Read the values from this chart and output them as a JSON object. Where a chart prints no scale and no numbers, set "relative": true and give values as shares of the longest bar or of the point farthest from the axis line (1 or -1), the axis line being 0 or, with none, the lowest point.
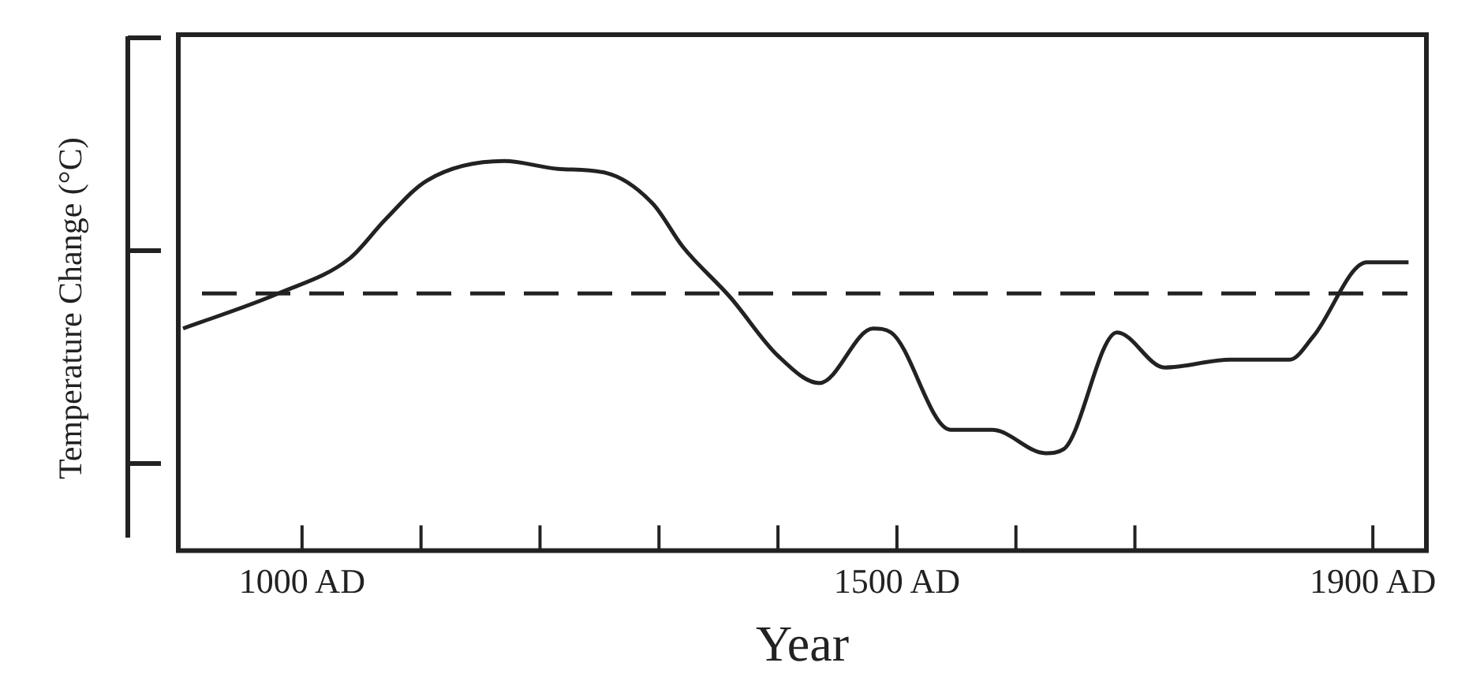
{
  "chart_data": {
    "type": "line",
    "relative": true,
    "xlabel": "Year",
    "ylabel": "Temperature Change (°C)",
    "xlim": [
      896,
      1945
    ],
    "xticks": [
      {
        "value": 1000,
        "label": "1000 AD"
      },
      {
        "value": 1100,
        "label": null
      },
      {
        "value": 1200,
        "label": null
      },
      {
        "value": 1300,
        "label": null
      },
      {
        "value": 1400,
        "label": null
      },
      {
        "value": 1500,
        "label": "1500 AD"
      },
      {
        "value": 1600,
        "label": null
      },
      {
        "value": 1700,
        "label": null
      },
      {
        "value": 1900,
        "label": "1900 AD"
      }
    ],
    "series": [
      {
        "color": "#222222",
        "x": [
          900,
          980,
          1040,
          1070,
          1105,
          1170,
          1215,
          1255,
          1295,
          1320,
          1360,
          1400,
          1435,
          1480,
          1495,
          1545,
          1580,
          1625,
          1640,
          1685,
          1725,
          1780,
          1830,
          1850,
          1895,
          1930
        ],
        "values": [
          0.57,
          0.66,
          0.75,
          0.85,
          0.95,
          1,
          0.98,
          0.97,
          0.89,
          0.78,
          0.65,
          0.5,
          0.43,
          0.57,
          0.56,
          0.31,
          0.31,
          0.25,
          0.26,
          0.56,
          0.47,
          0.49,
          0.49,
          0.55,
          0.74,
          0.74
        ]
      }
    ],
    "ref_lines": [
      {
        "axis": "y",
        "value": 0.66,
        "color": "#222222",
        "line_style": "dashed"
      }
    ],
    "grid": false,
    "legend": false,
    "marker": "none",
    "line_style": "solid"
  }
}
